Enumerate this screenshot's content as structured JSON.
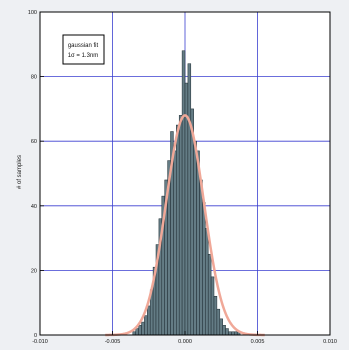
{
  "chart_data": {
    "type": "bar",
    "ylabel": "# of samples",
    "xlim": [
      -0.01,
      0.01
    ],
    "ylim": [
      0,
      100
    ],
    "x_ticks": [
      -0.01,
      -0.005,
      0.0,
      0.005,
      0.01
    ],
    "y_ticks": [
      0,
      20,
      40,
      60,
      80,
      100
    ],
    "x_tick_labels": [
      "-0.010",
      "-0.005",
      "0.000",
      "0.005",
      "0.010"
    ],
    "y_tick_labels": [
      "0",
      "20",
      "40",
      "60",
      "80",
      "100"
    ],
    "grid": true,
    "bin_width": 0.0002,
    "bin_centers": [
      -0.0035,
      -0.0033,
      -0.0031,
      -0.0029,
      -0.0027,
      -0.0025,
      -0.0023,
      -0.0021,
      -0.0019,
      -0.0017,
      -0.0015,
      -0.0013,
      -0.0011,
      -0.0009,
      -0.0007,
      -0.0005,
      -0.0003,
      -0.0001,
      0.0001,
      0.0003,
      0.0005,
      0.0007,
      0.0009,
      0.0011,
      0.0013,
      0.0015,
      0.0017,
      0.0019,
      0.0021,
      0.0023,
      0.0025,
      0.0027,
      0.0029,
      0.0031,
      0.0033,
      0.0035,
      0.0037
    ],
    "values": [
      1,
      2,
      3,
      4,
      6,
      9,
      14,
      21,
      28,
      36,
      43,
      48,
      54,
      63,
      57,
      65,
      68,
      88,
      78,
      84,
      70,
      60,
      57,
      48,
      41,
      33,
      25,
      18,
      12,
      8,
      5,
      3,
      2,
      1,
      1,
      1,
      1
    ],
    "series": [
      {
        "name": "histogram",
        "color": "#647c85"
      },
      {
        "name": "gaussian fit",
        "color": "#f0a898",
        "mean": 0.0,
        "sigma": 0.0013,
        "peak": 68
      }
    ],
    "annotation": [
      "gaussian fit",
      "1σ = 1.3nm"
    ],
    "colors": {
      "background": "#eef0f3",
      "plot_background": "#ffffff",
      "grid": "#3a3fd0",
      "axis": "#000000"
    }
  }
}
